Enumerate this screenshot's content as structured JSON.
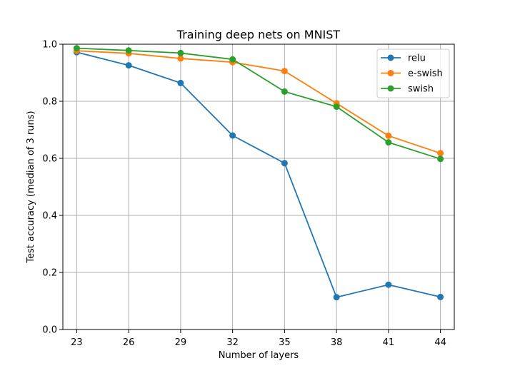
{
  "chart_data": {
    "type": "line",
    "title": "Training deep nets on MNIST",
    "xlabel": "Number of layers",
    "ylabel": "Test accuracy (median of 3 runs)",
    "categories": [
      "23",
      "26",
      "29",
      "32",
      "35",
      "38",
      "41",
      "44"
    ],
    "xlim": [
      22.2,
      44.8
    ],
    "ylim": [
      0.0,
      1.0
    ],
    "yticks": [
      0.0,
      0.2,
      0.4,
      0.6,
      0.8,
      1.0
    ],
    "ytick_labels": [
      "0.0",
      "0.2",
      "0.4",
      "0.6",
      "0.8",
      "1.0"
    ],
    "grid": true,
    "legend_position": "upper right",
    "series": [
      {
        "name": "relu",
        "color": "#1f77b4",
        "x": [
          23,
          26,
          29,
          32,
          35,
          38,
          41,
          44
        ],
        "values": [
          0.972,
          0.926,
          0.864,
          0.68,
          0.583,
          0.113,
          0.157,
          0.114
        ]
      },
      {
        "name": "e-swish",
        "color": "#ff7f0e",
        "x": [
          23,
          26,
          29,
          32,
          35,
          38,
          41,
          44
        ],
        "values": [
          0.977,
          0.968,
          0.95,
          0.937,
          0.906,
          0.793,
          0.679,
          0.618
        ]
      },
      {
        "name": "swish",
        "color": "#2ca02c",
        "x": [
          23,
          26,
          29,
          32,
          35,
          38,
          41,
          44
        ],
        "values": [
          0.986,
          0.978,
          0.969,
          0.947,
          0.834,
          0.781,
          0.656,
          0.598
        ]
      }
    ]
  }
}
